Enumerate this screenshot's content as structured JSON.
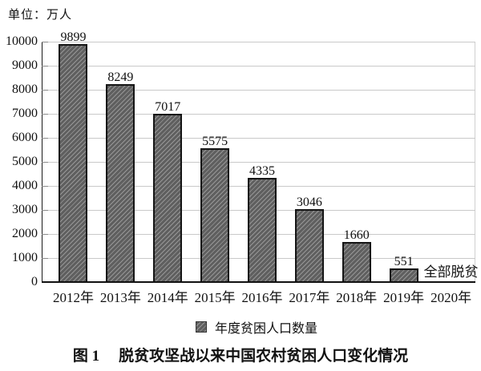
{
  "unit_label": "单位：万人",
  "legend": {
    "label": "年度贫困人口数量"
  },
  "caption": {
    "figure_no": "图 1",
    "title": "脱贫攻坚战以来中国农村贫困人口变化情况"
  },
  "colors": {
    "bar_base": "#5f5f5f",
    "bar_stripe": "#979797",
    "bar_border": "#151515",
    "gridline": "#c9c9c9",
    "axis": "#111111"
  },
  "chart_data": {
    "type": "bar",
    "title": "图 1 脱贫攻坚战以来中国农村贫困人口变化情况",
    "unit": "万人",
    "categories": [
      "2012年",
      "2013年",
      "2014年",
      "2015年",
      "2016年",
      "2017年",
      "2018年",
      "2019年",
      "2020年"
    ],
    "values": [
      9899,
      8249,
      7017,
      5575,
      4335,
      3046,
      1660,
      551,
      null
    ],
    "bar_labels": [
      "9899",
      "8249",
      "7017",
      "5575",
      "4335",
      "3046",
      "1660",
      "551",
      "全部脱贫"
    ],
    "annotation_2020": "全部脱贫",
    "legend": [
      "年度贫困人口数量"
    ],
    "xlabel": "",
    "ylabel": "万人",
    "ylim": [
      0,
      10000
    ],
    "ytick_step": 1000,
    "yticks": [
      0,
      1000,
      2000,
      3000,
      4000,
      5000,
      6000,
      7000,
      8000,
      9000,
      10000
    ],
    "grid": true,
    "legend_position": "bottom",
    "bar_pattern": "diagonal-hatch"
  }
}
